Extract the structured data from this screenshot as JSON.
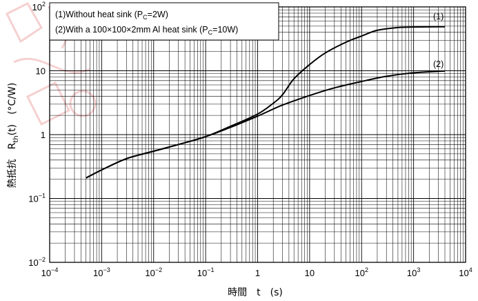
{
  "chart_data": {
    "type": "line",
    "x_scale": "log",
    "y_scale": "log",
    "xlim": [
      0.0001,
      10000
    ],
    "ylim": [
      0.01,
      100
    ],
    "x_ticks": [
      {
        "base": "10",
        "exp": "−4"
      },
      {
        "base": "10",
        "exp": "−3"
      },
      {
        "base": "10",
        "exp": "−2"
      },
      {
        "base": "10",
        "exp": "−1"
      },
      {
        "base": "1",
        "exp": ""
      },
      {
        "base": "10",
        "exp": ""
      },
      {
        "base": "10",
        "exp": "2"
      },
      {
        "base": "10",
        "exp": "3"
      },
      {
        "base": "10",
        "exp": "4"
      }
    ],
    "y_ticks": [
      {
        "base": "10",
        "exp": "−2"
      },
      {
        "base": "10",
        "exp": "−1"
      },
      {
        "base": "1",
        "exp": ""
      },
      {
        "base": "10",
        "exp": ""
      },
      {
        "base": "10",
        "exp": "2"
      }
    ],
    "xlabel": "時間　t　(s)",
    "ylabel_prefix": "熱抵抗　R",
    "ylabel_sub": "th",
    "ylabel_suffix": "(t)　(°C/W)",
    "grid": true,
    "legend_placement": "top-left",
    "legend": [
      {
        "text": "(1)Without heat sink (P",
        "sub": "C",
        "tail": "=2W)"
      },
      {
        "text": "(2)With a 100×100×2mm Al heat sink (P",
        "sub": "C",
        "tail": "=10W)"
      }
    ],
    "series": [
      {
        "label": "(1)",
        "x": [
          0.0005,
          0.001,
          0.003,
          0.01,
          0.03,
          0.1,
          0.3,
          1,
          2,
          3,
          5,
          10,
          20,
          50,
          100,
          200,
          500,
          1000,
          4000
        ],
        "y": [
          0.21,
          0.28,
          0.42,
          0.55,
          0.7,
          0.93,
          1.35,
          2.1,
          3.1,
          4.2,
          7.5,
          12.5,
          19,
          28,
          35,
          43,
          47.5,
          48.5,
          49
        ]
      },
      {
        "label": "(2)",
        "x": [
          0.0005,
          0.001,
          0.003,
          0.01,
          0.03,
          0.1,
          0.3,
          1,
          3,
          10,
          30,
          100,
          300,
          1000,
          4000
        ],
        "y": [
          0.21,
          0.28,
          0.42,
          0.55,
          0.7,
          0.93,
          1.3,
          1.95,
          2.9,
          4.1,
          5.4,
          6.8,
          8.2,
          9.3,
          9.9
        ]
      }
    ]
  }
}
